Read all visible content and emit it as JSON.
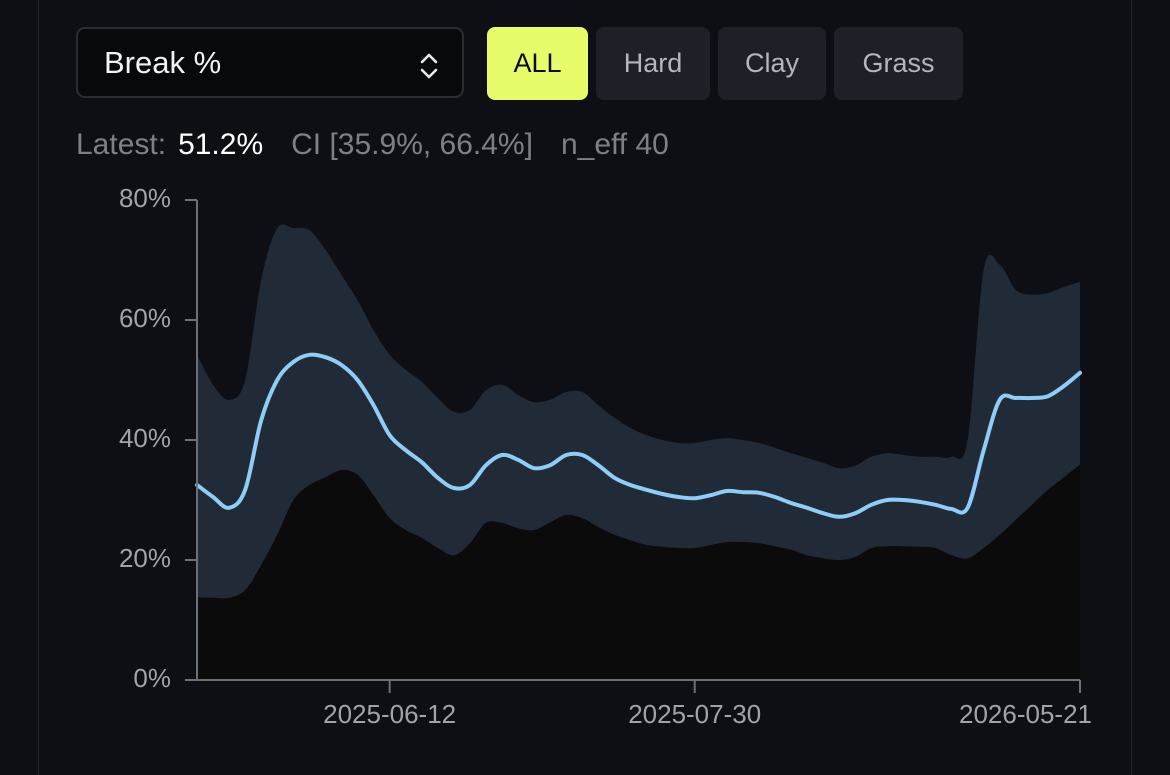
{
  "controls": {
    "metric_select": "Break %",
    "surfaces": [
      "ALL",
      "Hard",
      "Clay",
      "Grass"
    ],
    "active_surface": 0
  },
  "stats": {
    "latest_label": "Latest:",
    "latest_value": "51.2%",
    "ci": "CI [35.9%, 66.4%]",
    "n_eff": "n_eff 40"
  },
  "chart_data": {
    "type": "line",
    "categories": [
      null,
      null,
      null,
      null,
      null,
      null,
      null,
      null,
      null,
      null,
      null,
      null,
      "2025-06-12",
      null,
      null,
      null,
      null,
      null,
      null,
      null,
      null,
      null,
      null,
      null,
      null,
      null,
      null,
      null,
      null,
      null,
      null,
      "2025-07-30",
      null,
      null,
      null,
      null,
      null,
      null,
      null,
      null,
      null,
      null,
      null,
      null,
      null,
      null,
      null,
      null,
      null,
      null,
      null,
      null,
      null,
      null,
      null,
      "2026-05-21"
    ],
    "series": [
      {
        "color": "#8ecdf7",
        "values": [
          32.5,
          30.5,
          28.7,
          31.7,
          43.3,
          50,
          53,
          54.2,
          53.8,
          52.5,
          50,
          45.8,
          40.8,
          38.3,
          36.3,
          33.7,
          32,
          32.5,
          35.8,
          37.5,
          36.7,
          35.3,
          35.8,
          37.5,
          37.5,
          35.8,
          33.7,
          32.5,
          31.7,
          31,
          30.5,
          30.3,
          30.8,
          31.5,
          31.3,
          31.2,
          30.5,
          29.5,
          28.7,
          27.8,
          27.2,
          27.8,
          29.2,
          30,
          30,
          29.7,
          29.2,
          28.5,
          28.7,
          38.3,
          46.7,
          47,
          47,
          47.3,
          49,
          51.2
        ]
      }
    ],
    "band": {
      "color": "#212b37",
      "below_color": "#0b0b0c",
      "upper": [
        54.2,
        49.2,
        46.7,
        50,
        66.7,
        75.3,
        75.3,
        75,
        71.7,
        67.5,
        63.3,
        58.3,
        54.2,
        51.7,
        49.7,
        47,
        44.7,
        45,
        48.3,
        49.2,
        47.5,
        46.3,
        46.7,
        48,
        48,
        45.8,
        43.7,
        42,
        40.8,
        40,
        39.5,
        39.5,
        40,
        40.3,
        40,
        39.5,
        38.7,
        37.8,
        37,
        36.2,
        35.3,
        35.7,
        37.2,
        37.8,
        37.5,
        37.2,
        37.2,
        37.2,
        40,
        68.3,
        69.2,
        65,
        64.2,
        64.5,
        65.5,
        66.4
      ],
      "lower": [
        13.8,
        13.7,
        13.7,
        15,
        19.2,
        24.2,
        30,
        32.5,
        33.8,
        35,
        34.2,
        30.8,
        27,
        25,
        23.7,
        22,
        20.8,
        22.8,
        26.2,
        26.2,
        25.3,
        25,
        26.3,
        27.5,
        27,
        25.5,
        24.2,
        23.3,
        22.5,
        22.2,
        22,
        22,
        22.5,
        23,
        23,
        22.8,
        22.3,
        21.7,
        20.8,
        20.3,
        20,
        20.5,
        22,
        22.3,
        22.3,
        22.2,
        22,
        20.8,
        20.3,
        22,
        24.2,
        26.7,
        29.2,
        31.7,
        33.8,
        35.9
      ]
    },
    "ylim": [
      0,
      80
    ],
    "yticks": [
      {
        "value": 0,
        "label": "0%"
      },
      {
        "value": 20,
        "label": "20%"
      },
      {
        "value": 40,
        "label": "40%"
      },
      {
        "value": 60,
        "label": "60%"
      },
      {
        "value": 80,
        "label": "80%"
      }
    ]
  }
}
